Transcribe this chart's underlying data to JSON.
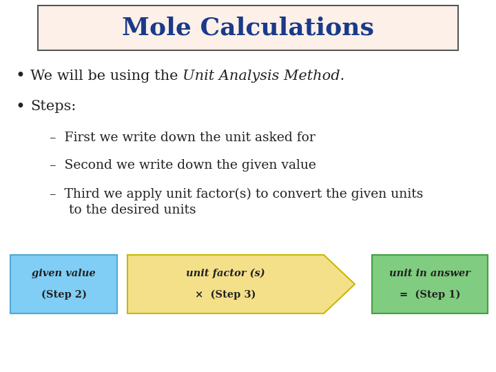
{
  "title": "Mole Calculations",
  "title_color": "#1a3a8a",
  "title_bg": "#fdf0e8",
  "title_border": "#555555",
  "bg_color": "#ffffff",
  "bullet1_normal": "We will be using the ",
  "bullet1_italic": "Unit Analysis Method.",
  "bullet2": "Steps:",
  "dash1": "First we write down the unit asked for",
  "dash2": "Second we write down the given value",
  "dash3_part1": "Third we apply unit factor(s) to convert the given units",
  "dash3_part2": "to the desired units",
  "box1_label1": "given value",
  "box1_label2": "(Step 2)",
  "box1_color": "#80cef5",
  "box1_border": "#50a8d0",
  "arrow_label1": "unit factor (s)",
  "arrow_label2": "×  (Step 3)",
  "arrow_color": "#f5e08a",
  "arrow_border": "#c8b800",
  "box3_label1": "unit in answer",
  "box3_label2": "=  (Step 1)",
  "box3_color": "#80cc80",
  "box3_border": "#40a040",
  "text_color": "#222222",
  "font_size_title": 26,
  "font_size_bullet": 15,
  "font_size_dash": 13.5,
  "font_size_box": 10.5
}
